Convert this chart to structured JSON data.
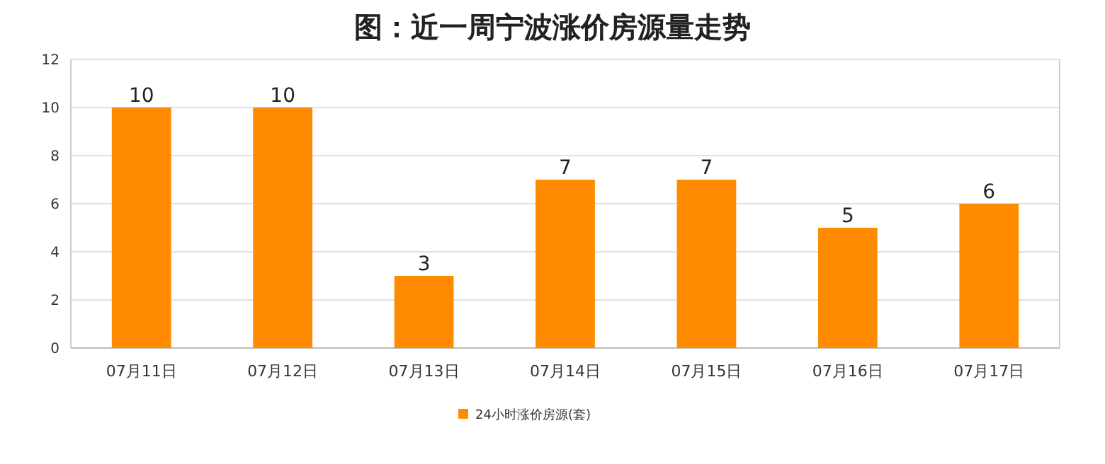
{
  "chart_data": {
    "type": "bar",
    "title": "图：近一周宁波涨价房源量走势",
    "categories": [
      "07月11日",
      "07月12日",
      "07月13日",
      "07月14日",
      "07月15日",
      "07月16日",
      "07月17日"
    ],
    "series": [
      {
        "name": "24小时涨价房源(套)",
        "color": "#ff8c00",
        "values": [
          10,
          10,
          3,
          7,
          7,
          5,
          6
        ]
      }
    ],
    "ylim": [
      0,
      12
    ],
    "yticks": [
      0,
      2,
      4,
      6,
      8,
      10,
      12
    ],
    "grid": "y",
    "legend": "bottom",
    "data_labels": true
  }
}
